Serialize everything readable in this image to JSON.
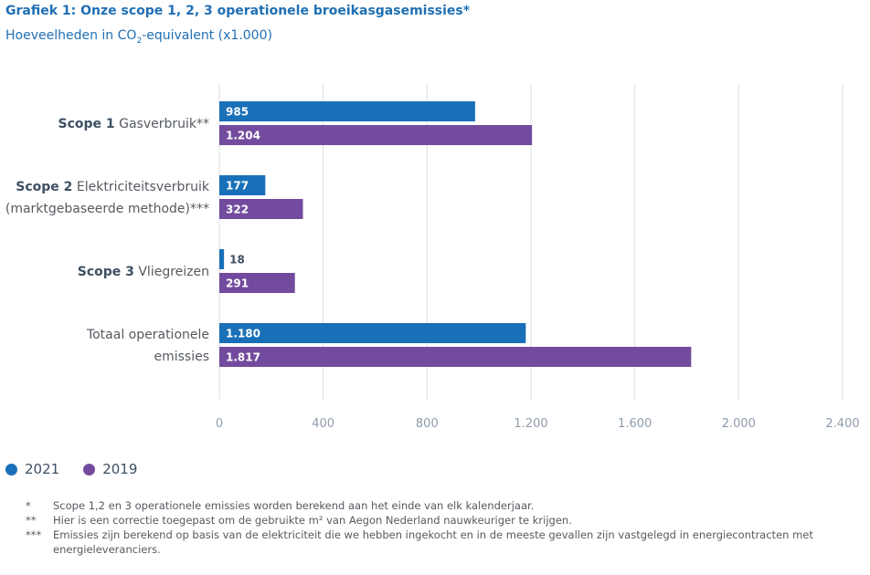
{
  "chart_data": {
    "type": "bar",
    "orientation": "horizontal",
    "title": "Grafiek 1: Onze scope 1, 2, 3 operationele broeikasgasemissies*",
    "subtitle": {
      "pre": "Hoeveelheden in CO",
      "sub": "2",
      "post": "-equivalent (x1.000)"
    },
    "categories": [
      {
        "lines": [
          {
            "strong": "Scope 1",
            "rest": " Gasverbruik**"
          }
        ]
      },
      {
        "lines": [
          {
            "strong": "Scope 2",
            "rest": " Elektriciteitsverbruik"
          },
          {
            "strong": "",
            "rest": "(marktgebaseerde methode)***"
          }
        ]
      },
      {
        "lines": [
          {
            "strong": "Scope 3",
            "rest": " Vliegreizen"
          }
        ]
      },
      {
        "lines": [
          {
            "strong": "",
            "rest": "Totaal operationele"
          },
          {
            "strong": "",
            "rest": "emissies"
          }
        ]
      }
    ],
    "series": [
      {
        "name": "2021",
        "color": "#1a70b8",
        "values": [
          985,
          177,
          18,
          1180
        ],
        "labels": [
          "985",
          "177",
          "18",
          "1.180"
        ]
      },
      {
        "name": "2019",
        "color": "#734b9e",
        "values": [
          1204,
          322,
          291,
          1817
        ],
        "labels": [
          "1.204",
          "322",
          "291",
          "1.817"
        ]
      }
    ],
    "xlim": [
      0,
      2400
    ],
    "xticks": [
      0,
      400,
      800,
      1200,
      1600,
      2000,
      2400
    ],
    "xtick_labels": [
      "0",
      "400",
      "800",
      "1.200",
      "1.600",
      "2.000",
      "2.400"
    ],
    "grid": true,
    "legend_position": "bottom-left"
  },
  "footnotes": [
    {
      "mark": "*",
      "text": "Scope 1,2 en 3 operationele emissies worden berekend aan het einde van elk kalenderjaar."
    },
    {
      "mark": "**",
      "text": "Hier is een correctie toegepast om de gebruikte m² van Aegon Nederland nauwkeuriger te krijgen."
    },
    {
      "mark": "***",
      "text": "Emissies zijn berekend op basis van de elektriciteit die we hebben ingekocht en in de meeste gevallen zijn vastgelegd in energiecontracten met energieleveranciers."
    }
  ]
}
